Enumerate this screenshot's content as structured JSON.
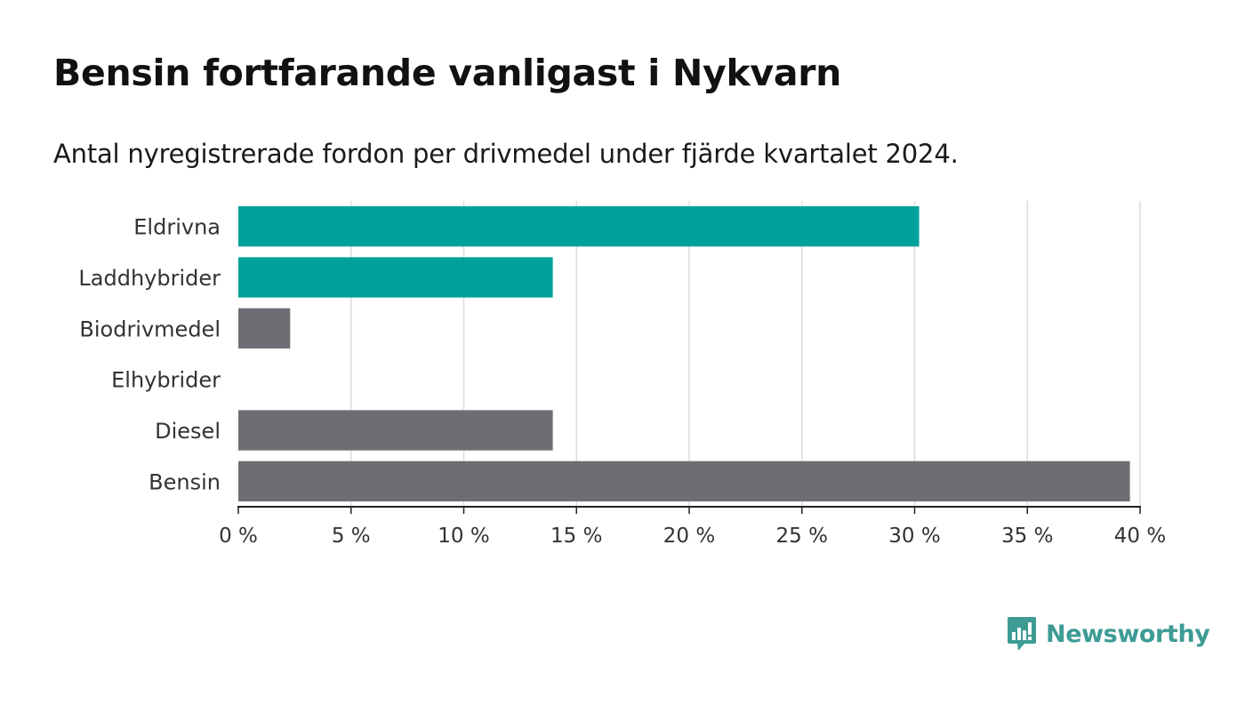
{
  "header": {
    "title": "Bensin fortfarande vanligast i Nykvarn",
    "subtitle": "Antal nyregistrerade fordon per drivmedel under fjärde kvartalet 2024."
  },
  "chart_data": {
    "type": "bar",
    "orientation": "horizontal",
    "title": "Bensin fortfarande vanligast i Nykvarn",
    "subtitle": "Antal nyregistrerade fordon per drivmedel under fjärde kvartalet 2024.",
    "xlabel": "",
    "ylabel": "",
    "categories": [
      "Eldrivna",
      "Laddhybrider",
      "Biodrivmedel",
      "Elhybrider",
      "Diesel",
      "Bensin"
    ],
    "values": [
      30.2,
      13.95,
      2.3,
      0,
      13.95,
      39.55
    ],
    "value_unit": "%",
    "bar_colors": [
      "#00a19a",
      "#00a19a",
      "#6e6d74",
      "#6e6d74",
      "#6e6d74",
      "#6e6d74"
    ],
    "xlim": [
      0,
      40
    ],
    "x_ticks": [
      0,
      5,
      10,
      15,
      20,
      25,
      30,
      35,
      40
    ],
    "x_tick_labels": [
      "0 %",
      "5 %",
      "10 %",
      "15 %",
      "20 %",
      "25 %",
      "30 %",
      "35 %",
      "40 %"
    ],
    "grid": true,
    "legend": "none"
  },
  "branding": {
    "name": "Newsworthy",
    "color": "#3d9b94"
  }
}
